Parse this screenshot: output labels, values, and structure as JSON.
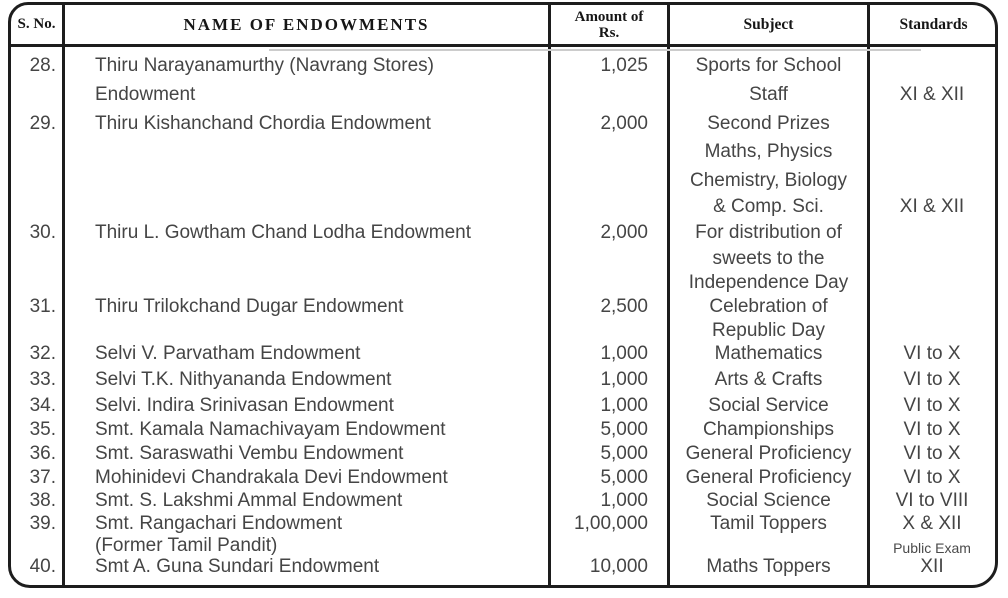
{
  "theme": {
    "ink": "#1d1d1d",
    "text": "#454545",
    "paper": "#ffffff"
  },
  "table": {
    "columns": [
      {
        "label": "S. No."
      },
      {
        "label": "NAME OF ENDOWMENTS"
      },
      {
        "label_line1": "Amount of",
        "label_line2": "Rs."
      },
      {
        "label": "Subject"
      },
      {
        "label": "Standards"
      }
    ],
    "rows": [
      {
        "sno": "28.",
        "name": [
          "Thiru Narayanamurthy (Navrang Stores)",
          "Endowment"
        ],
        "amount": "1,025",
        "subject": [
          "Sports for School",
          "Staff"
        ],
        "standards": [
          {
            "text": "XI & XII"
          }
        ]
      },
      {
        "sno": "29.",
        "name": [
          "Thiru Kishanchand Chordia Endowment"
        ],
        "amount": "2,000",
        "subject": [
          "Second Prizes",
          "Maths, Physics",
          "Chemistry, Biology",
          "& Comp. Sci."
        ],
        "standards": [
          {
            "text": "XI & XII"
          }
        ]
      },
      {
        "sno": "30.",
        "name": [
          "Thiru L. Gowtham Chand Lodha Endowment"
        ],
        "amount": "2,000",
        "subject": [
          "For distribution of",
          "sweets to the",
          "Independence Day"
        ],
        "standards": []
      },
      {
        "sno": "31.",
        "name": [
          "Thiru Trilokchand Dugar Endowment"
        ],
        "amount": "2,500",
        "subject": [
          "Celebration of",
          "Republic Day"
        ],
        "standards": []
      },
      {
        "sno": "32.",
        "name": [
          "Selvi V. Parvatham Endowment"
        ],
        "amount": "1,000",
        "subject": [
          "Mathematics"
        ],
        "standards": [
          {
            "text": "VI to X"
          }
        ]
      },
      {
        "sno": "33.",
        "name": [
          "Selvi T.K. Nithyananda Endowment"
        ],
        "amount": "1,000",
        "subject": [
          "Arts & Crafts"
        ],
        "standards": [
          {
            "text": "VI to X"
          }
        ]
      },
      {
        "sno": "34.",
        "name": [
          "Selvi. Indira Srinivasan Endowment"
        ],
        "amount": "1,000",
        "subject": [
          "Social Service"
        ],
        "standards": [
          {
            "text": "VI to X"
          }
        ]
      },
      {
        "sno": "35.",
        "name": [
          "Smt. Kamala Namachivayam Endowment"
        ],
        "amount": "5,000",
        "subject": [
          "Championships"
        ],
        "standards": [
          {
            "text": "VI to X"
          }
        ]
      },
      {
        "sno": "36.",
        "name": [
          "Smt. Saraswathi Vembu Endowment"
        ],
        "amount": "5,000",
        "subject": [
          "General Proficiency"
        ],
        "standards": [
          {
            "text": "VI to X"
          }
        ]
      },
      {
        "sno": "37.",
        "name": [
          "Mohinidevi Chandrakala Devi Endowment"
        ],
        "amount": "5,000",
        "subject": [
          "General Proficiency"
        ],
        "standards": [
          {
            "text": "VI to X"
          }
        ]
      },
      {
        "sno": "38.",
        "name": [
          "Smt. S. Lakshmi Ammal Endowment"
        ],
        "amount": "1,000",
        "subject": [
          "Social Science"
        ],
        "standards": [
          {
            "text": "VI to VIII"
          }
        ]
      },
      {
        "sno": "39.",
        "name": [
          "Smt. Rangachari Endowment",
          "(Former Tamil Pandit)"
        ],
        "amount": "1,00,000",
        "subject": [
          "Tamil Toppers"
        ],
        "standards": [
          {
            "text": "X & XII"
          },
          {
            "text": "Public Exam",
            "small": true
          }
        ]
      },
      {
        "sno": "40.",
        "name": [
          "Smt A. Guna Sundari Endowment"
        ],
        "amount": "10,000",
        "subject": [
          "Maths Toppers"
        ],
        "standards": [
          {
            "text": "XII"
          }
        ]
      }
    ]
  }
}
